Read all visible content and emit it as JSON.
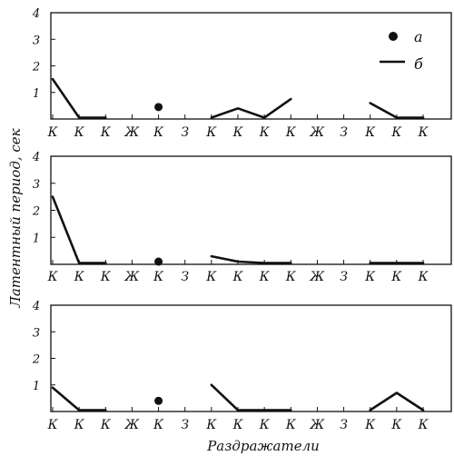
{
  "chart_data": {
    "type": "line",
    "ylabel": "Латентный период, сек",
    "xlabel": "Раздражатели",
    "categories": [
      "К",
      "К",
      "К",
      "Ж",
      "К",
      "З",
      "К",
      "К",
      "К",
      "К",
      "Ж",
      "З",
      "К",
      "К",
      "К"
    ],
    "yticks": [
      "1",
      "2",
      "3",
      "4"
    ],
    "ylim": [
      0,
      4
    ],
    "legend": {
      "position": "top-right",
      "items": [
        {
          "marker": "dot",
          "label": "а"
        },
        {
          "marker": "line",
          "label": "б"
        }
      ]
    },
    "panels": [
      {
        "segments": [
          [
            [
              0,
              1.5
            ],
            [
              1,
              0.05
            ],
            [
              2,
              0.05
            ]
          ],
          [
            [
              6,
              0.05
            ],
            [
              7,
              0.4
            ],
            [
              8,
              0.05
            ],
            [
              9,
              0.75
            ]
          ],
          [
            [
              12,
              0.6
            ],
            [
              13,
              0.05
            ],
            [
              14,
              0.05
            ]
          ]
        ],
        "dots": [
          [
            4,
            0.45
          ]
        ]
      },
      {
        "segments": [
          [
            [
              0,
              2.5
            ],
            [
              1,
              0.05
            ],
            [
              2,
              0.05
            ]
          ],
          [
            [
              6,
              0.3
            ],
            [
              7,
              0.1
            ],
            [
              8,
              0.05
            ],
            [
              9,
              0.05
            ]
          ],
          [
            [
              12,
              0.05
            ],
            [
              13,
              0.05
            ],
            [
              14,
              0.05
            ]
          ]
        ],
        "dots": [
          [
            4,
            0.1
          ]
        ]
      },
      {
        "segments": [
          [
            [
              0,
              0.9
            ],
            [
              1,
              0.05
            ],
            [
              2,
              0.05
            ]
          ],
          [
            [
              6,
              1.0
            ],
            [
              7,
              0.05
            ],
            [
              8,
              0.05
            ],
            [
              9,
              0.05
            ]
          ],
          [
            [
              12,
              0.05
            ],
            [
              13,
              0.7
            ],
            [
              14,
              0.05
            ]
          ]
        ],
        "dots": [
          [
            4,
            0.4
          ]
        ]
      }
    ]
  }
}
